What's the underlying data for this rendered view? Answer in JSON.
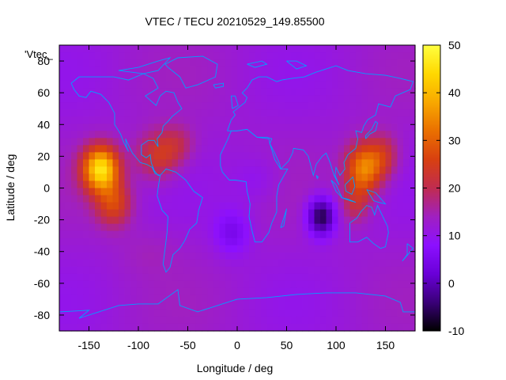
{
  "chart_data": {
    "type": "heatmap",
    "title": "VTEC / TECU 20210529_149.85500",
    "xlabel": "Longitude / deg",
    "ylabel": "Latitude / deg",
    "key_label": "'Vtec_",
    "xlim": [
      -180,
      180
    ],
    "ylim": [
      -90,
      90
    ],
    "x_ticks": [
      -150,
      -100,
      -50,
      0,
      50,
      100,
      150
    ],
    "y_ticks": [
      -80,
      -60,
      -40,
      -20,
      0,
      20,
      40,
      60,
      80
    ],
    "colorbar": {
      "range": [
        -10,
        50
      ],
      "ticks": [
        -10,
        0,
        10,
        20,
        30,
        40,
        50
      ],
      "palette": [
        "#000000",
        "#3a0078",
        "#6a00d8",
        "#8c10ff",
        "#a020c0",
        "#c02c50",
        "#d84010",
        "#ea7000",
        "#f8a800",
        "#ffd800",
        "#ffff40"
      ]
    },
    "grid": false,
    "overlay": "coastlines",
    "overlay_color": "#00a0ff",
    "peaks": [
      {
        "lon": -138,
        "lat": 12,
        "value": 45
      },
      {
        "lon": -80,
        "lat": 20,
        "value": 25
      },
      {
        "lon": 128,
        "lat": 10,
        "value": 35
      },
      {
        "lon": 85,
        "lat": -18,
        "value": -8
      }
    ]
  }
}
